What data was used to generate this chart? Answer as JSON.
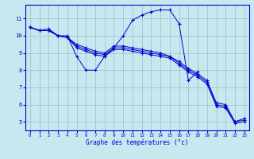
{
  "xlabel": "Graphe des températures (°c)",
  "xlim": [
    -0.5,
    23.5
  ],
  "ylim": [
    4.5,
    11.8
  ],
  "xticks": [
    0,
    1,
    2,
    3,
    4,
    5,
    6,
    7,
    8,
    9,
    10,
    11,
    12,
    13,
    14,
    15,
    16,
    17,
    18,
    19,
    20,
    21,
    22,
    23
  ],
  "yticks": [
    5,
    6,
    7,
    8,
    9,
    10,
    11
  ],
  "background_color": "#c8e8f0",
  "line_color": "#0000cc",
  "grid_color": "#99bbcc",
  "curves": [
    {
      "x": [
        0,
        1,
        2,
        3,
        4,
        5,
        6,
        7,
        8,
        9,
        10,
        11,
        12,
        13,
        14,
        15,
        16,
        17,
        18
      ],
      "y": [
        10.5,
        10.3,
        10.4,
        10.0,
        10.0,
        8.8,
        8.0,
        8.0,
        8.8,
        9.3,
        10.0,
        10.9,
        11.2,
        11.4,
        11.5,
        11.5,
        10.7,
        7.4,
        7.9
      ]
    },
    {
      "x": [
        0,
        1,
        2,
        3,
        4,
        5,
        6,
        7,
        8,
        9,
        10,
        11,
        12,
        13,
        14,
        15,
        16,
        17,
        18,
        19,
        20,
        21,
        22,
        23
      ],
      "y": [
        10.5,
        10.3,
        10.3,
        10.0,
        9.9,
        9.5,
        9.3,
        9.1,
        9.0,
        9.4,
        9.4,
        9.3,
        9.2,
        9.1,
        9.0,
        8.8,
        8.5,
        8.1,
        7.8,
        7.4,
        6.1,
        6.0,
        5.0,
        5.2
      ]
    },
    {
      "x": [
        0,
        1,
        2,
        3,
        4,
        5,
        6,
        7,
        8,
        9,
        10,
        11,
        12,
        13,
        14,
        15,
        16,
        17,
        18,
        19,
        20,
        21,
        22,
        23
      ],
      "y": [
        10.5,
        10.3,
        10.3,
        10.0,
        9.9,
        9.4,
        9.2,
        9.0,
        8.9,
        9.3,
        9.3,
        9.2,
        9.1,
        9.0,
        8.9,
        8.8,
        8.4,
        8.0,
        7.7,
        7.3,
        6.0,
        5.9,
        5.0,
        5.1
      ]
    },
    {
      "x": [
        0,
        1,
        2,
        3,
        4,
        5,
        6,
        7,
        8,
        9,
        10,
        11,
        12,
        13,
        14,
        15,
        16,
        17,
        18,
        19,
        20,
        21,
        22,
        23
      ],
      "y": [
        10.5,
        10.3,
        10.3,
        10.0,
        9.9,
        9.3,
        9.1,
        8.9,
        8.8,
        9.2,
        9.2,
        9.1,
        9.0,
        8.9,
        8.8,
        8.7,
        8.3,
        7.9,
        7.6,
        7.2,
        5.9,
        5.8,
        4.9,
        5.0
      ]
    }
  ]
}
